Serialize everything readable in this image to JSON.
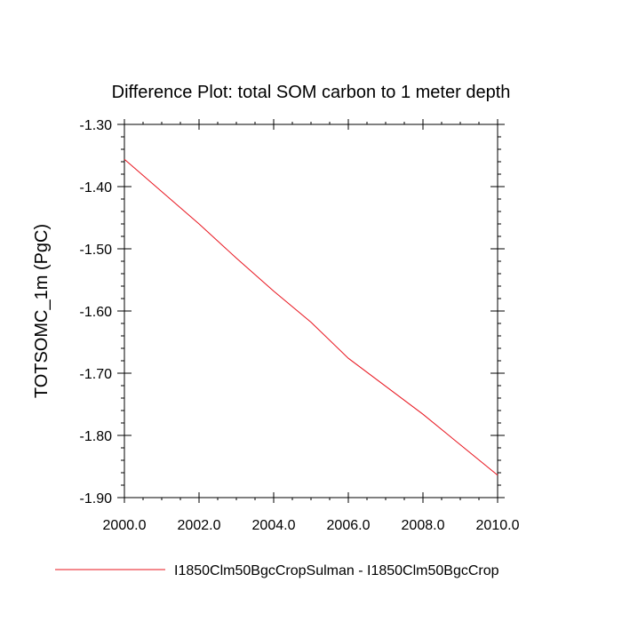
{
  "chart_data": {
    "type": "line",
    "title": "Difference Plot: total SOM carbon to 1 meter depth",
    "xlabel": "",
    "ylabel": "TOTSOMC_1m  (PgC)",
    "xlim": [
      2000.0,
      2010.0
    ],
    "ylim": [
      -1.9,
      -1.3
    ],
    "x_ticks": [
      2000.0,
      2002.0,
      2004.0,
      2006.0,
      2008.0,
      2010.0
    ],
    "x_tick_labels": [
      "2000.0",
      "2002.0",
      "2004.0",
      "2006.0",
      "2008.0",
      "2010.0"
    ],
    "y_ticks": [
      -1.3,
      -1.4,
      -1.5,
      -1.6,
      -1.7,
      -1.8,
      -1.9
    ],
    "y_tick_labels": [
      "-1.30",
      "-1.40",
      "-1.50",
      "-1.60",
      "-1.70",
      "-1.80",
      "-1.90"
    ],
    "grid": false,
    "legend_position": "bottom",
    "series": [
      {
        "name": "I1850Clm50BgcCropSulman - I1850Clm50BgcCrop",
        "color": "#e8141e",
        "x": [
          2000,
          2001,
          2002,
          2003,
          2004,
          2005,
          2006,
          2007,
          2008,
          2009,
          2010
        ],
        "y": [
          -1.356,
          -1.408,
          -1.46,
          -1.515,
          -1.568,
          -1.618,
          -1.676,
          -1.721,
          -1.766,
          -1.815,
          -1.864
        ]
      }
    ]
  }
}
